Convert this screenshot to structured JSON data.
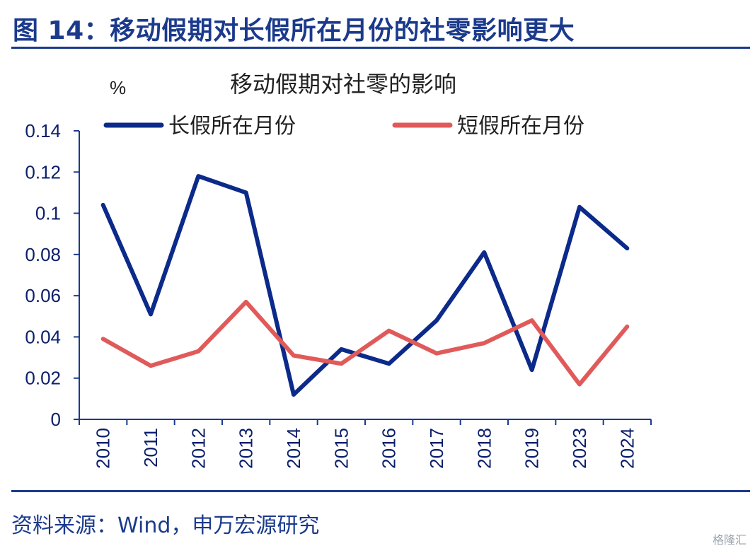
{
  "header": {
    "title": "图 14：移动假期对长假所在月份的社零影响更大"
  },
  "footer": {
    "source": "资料来源：Wind，申万宏源研究",
    "watermark": "格隆汇"
  },
  "colors": {
    "brand": "#1b3a8c",
    "series_long": "#0b2a8a",
    "series_short": "#e15a5a"
  },
  "chart_data": {
    "type": "line",
    "title": "移动假期对社零的影响",
    "ylabel": "%",
    "xlabel": "",
    "categories": [
      "2010",
      "2011",
      "2012",
      "2013",
      "2014",
      "2015",
      "2016",
      "2017",
      "2018",
      "2019",
      "2023",
      "2024"
    ],
    "ylim": [
      0,
      0.14
    ],
    "yticks": [
      "0",
      "0.02",
      "0.04",
      "0.06",
      "0.08",
      "0.1",
      "0.12",
      "0.14"
    ],
    "legend_position": "top",
    "grid": false,
    "series": [
      {
        "name": "长假所在月份",
        "color": "#0b2a8a",
        "values": [
          0.104,
          0.051,
          0.118,
          0.11,
          0.012,
          0.034,
          0.027,
          0.048,
          0.081,
          0.024,
          0.103,
          0.083
        ]
      },
      {
        "name": "短假所在月份",
        "color": "#e15a5a",
        "values": [
          0.039,
          0.026,
          0.033,
          0.057,
          0.031,
          0.027,
          0.043,
          0.032,
          0.037,
          0.048,
          0.017,
          0.045
        ]
      }
    ]
  }
}
